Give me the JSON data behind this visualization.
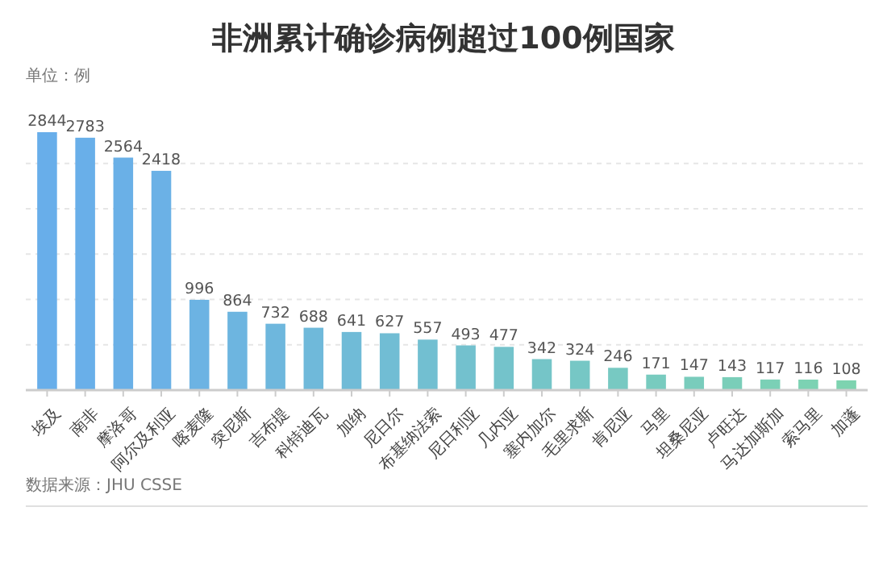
{
  "chart_data": {
    "type": "bar",
    "title": "非洲累计确诊病例超过100例国家",
    "ylabel": "单位：例",
    "categories": [
      "埃及",
      "南非",
      "摩洛哥",
      "阿尔及利亚",
      "喀麦隆",
      "突尼斯",
      "吉布提",
      "科特迪瓦",
      "加纳",
      "尼日尔",
      "布基纳法索",
      "尼日利亚",
      "几内亚",
      "塞内加尔",
      "毛里求斯",
      "肯尼亚",
      "马里",
      "坦桑尼亚",
      "卢旺达",
      "马达加斯加",
      "索马里",
      "加蓬"
    ],
    "values": [
      2844,
      2783,
      2564,
      2418,
      996,
      864,
      732,
      688,
      641,
      627,
      557,
      493,
      477,
      342,
      324,
      246,
      171,
      147,
      143,
      117,
      116,
      108
    ],
    "colors": [
      "#68aeea",
      "#69afe9",
      "#6ab0e7",
      "#6bb1e6",
      "#6cb3e3",
      "#6db5e0",
      "#6eb7dd",
      "#6fb9da",
      "#70bbd7",
      "#71bdd4",
      "#72bfd1",
      "#73c1ce",
      "#74c3cb",
      "#75c5c8",
      "#76c7c5",
      "#77c9c2",
      "#78cbbf",
      "#79ccbc",
      "#7aceb9",
      "#7bd0b6",
      "#7cd2b3",
      "#7dd3b0"
    ],
    "yticks": [
      {
        "value": 0,
        "label": null
      },
      {
        "value": 500,
        "label": null
      },
      {
        "value": 1000,
        "label": null
      },
      {
        "value": 1500,
        "label": null
      },
      {
        "value": 2000,
        "label": null
      },
      {
        "value": 2500,
        "label": null
      }
    ],
    "grid": "y",
    "data_labels": true,
    "tick_labels": "x",
    "annotations": [
      "数据来源：JHU CSSE"
    ]
  }
}
